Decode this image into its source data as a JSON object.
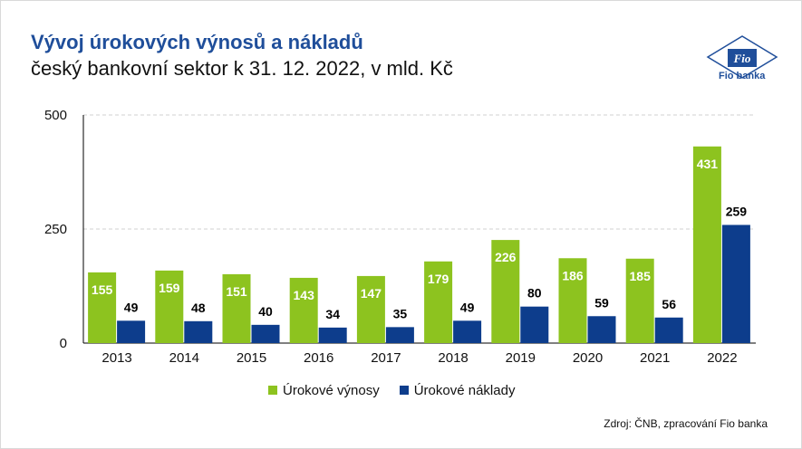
{
  "header": {
    "title": "Vývoj úrokových výnosů a nákladů",
    "subtitle": "český bankovní sektor k 31. 12. 2022, v mld. Kč"
  },
  "logo": {
    "mark_text": "Fio",
    "caption": "Fio banka"
  },
  "source": "Zdroj: ČNB, zpracování Fio banka",
  "colors": {
    "income": "#8dc31f",
    "costs": "#0d3d8c",
    "title": "#1f4e9a",
    "grid": "#d0d0d0"
  },
  "chart_data": {
    "type": "bar",
    "title": "Vývoj úrokových výnosů a nákladů",
    "subtitle": "český bankovní sektor k 31. 12. 2022, v mld. Kč",
    "categories": [
      "2013",
      "2014",
      "2015",
      "2016",
      "2017",
      "2018",
      "2019",
      "2020",
      "2021",
      "2022"
    ],
    "series": [
      {
        "name": "Úrokové výnosy",
        "values": [
          155,
          159,
          151,
          143,
          147,
          179,
          226,
          186,
          185,
          431
        ]
      },
      {
        "name": "Úrokové náklady",
        "values": [
          49,
          48,
          40,
          34,
          35,
          49,
          80,
          59,
          56,
          259
        ]
      }
    ],
    "ylim": [
      0,
      500
    ],
    "yticks": [
      0,
      250,
      500
    ],
    "grid": true,
    "legend_position": "bottom"
  }
}
